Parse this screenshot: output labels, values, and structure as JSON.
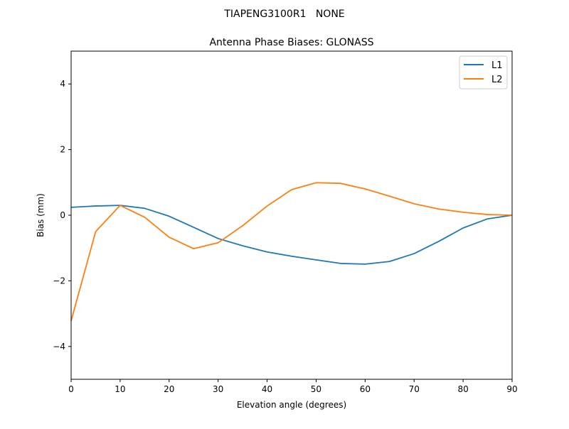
{
  "chart_data": {
    "type": "line",
    "suptitle": "TIAPENG3100R1   NONE",
    "title": "Antenna Phase Biases: GLONASS",
    "xlabel": "Elevation angle (degrees)",
    "ylabel": "Bias (mm)",
    "xlim": [
      0,
      90
    ],
    "ylim": [
      -5,
      5
    ],
    "xticks": [
      0,
      10,
      20,
      30,
      40,
      50,
      60,
      70,
      80,
      90
    ],
    "yticks": [
      -4,
      -2,
      0,
      2,
      4
    ],
    "ytick_labels": [
      "−4",
      "−2",
      "0",
      "2",
      "4"
    ],
    "grid": false,
    "legend_position": "top-right",
    "x": [
      0,
      5,
      10,
      15,
      20,
      25,
      30,
      35,
      40,
      45,
      50,
      55,
      60,
      65,
      70,
      75,
      80,
      85,
      90
    ],
    "series": [
      {
        "name": "L1",
        "color": "#1f77b4",
        "values": [
          0.24,
          0.28,
          0.3,
          0.21,
          -0.03,
          -0.37,
          -0.71,
          -0.93,
          -1.12,
          -1.25,
          -1.36,
          -1.47,
          -1.49,
          -1.41,
          -1.17,
          -0.8,
          -0.39,
          -0.11,
          0.0
        ]
      },
      {
        "name": "L2",
        "color": "#ff7f0e",
        "values": [
          -3.22,
          -0.5,
          0.3,
          -0.06,
          -0.67,
          -1.02,
          -0.84,
          -0.32,
          0.28,
          0.78,
          0.99,
          0.97,
          0.8,
          0.58,
          0.35,
          0.19,
          0.09,
          0.02,
          0.0
        ]
      }
    ]
  }
}
